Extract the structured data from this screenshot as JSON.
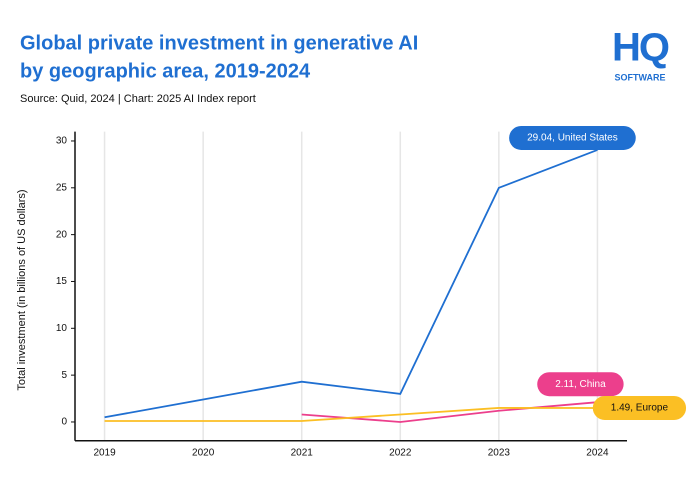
{
  "logo": {
    "mark": "HQ",
    "text": "SOFTWARE"
  },
  "chart_data": {
    "type": "line",
    "title": [
      "Global private investment in generative AI",
      "by geographic area, 2019-2024"
    ],
    "subtitle": "Source: Quid, 2024 | Chart: 2025 AI Index report",
    "y_label": "Total investment (in billions of US dollars)",
    "x": [
      2019,
      2020,
      2021,
      2022,
      2023,
      2024
    ],
    "xlim": [
      2018.7,
      2024.3
    ],
    "xticks": [
      2019,
      2020,
      2021,
      2022,
      2023,
      2024
    ],
    "ylim": [
      -2,
      31
    ],
    "yticks": [
      0,
      5,
      10,
      15,
      20,
      25,
      30
    ],
    "grid": true,
    "series": [
      {
        "name": "United States",
        "color": "#1f6fd1",
        "values": [
          0.5,
          2.4,
          4.3,
          3.0,
          25,
          29.04
        ],
        "value_labels": [
          null,
          null,
          null,
          null,
          null,
          "29.04, United States"
        ]
      },
      {
        "name": "China",
        "color": "#ec3f8c",
        "values": [
          null,
          null,
          0.8,
          0.0,
          1.2,
          2.11
        ],
        "value_labels": [
          null,
          null,
          null,
          null,
          null,
          "2.11, China"
        ]
      },
      {
        "name": "Europe",
        "color": "#fbbf24",
        "values": [
          0.1,
          0.1,
          0.1,
          0.8,
          1.5,
          1.49
        ],
        "value_labels": [
          null,
          null,
          null,
          null,
          null,
          "1.49, Europe"
        ]
      }
    ]
  }
}
